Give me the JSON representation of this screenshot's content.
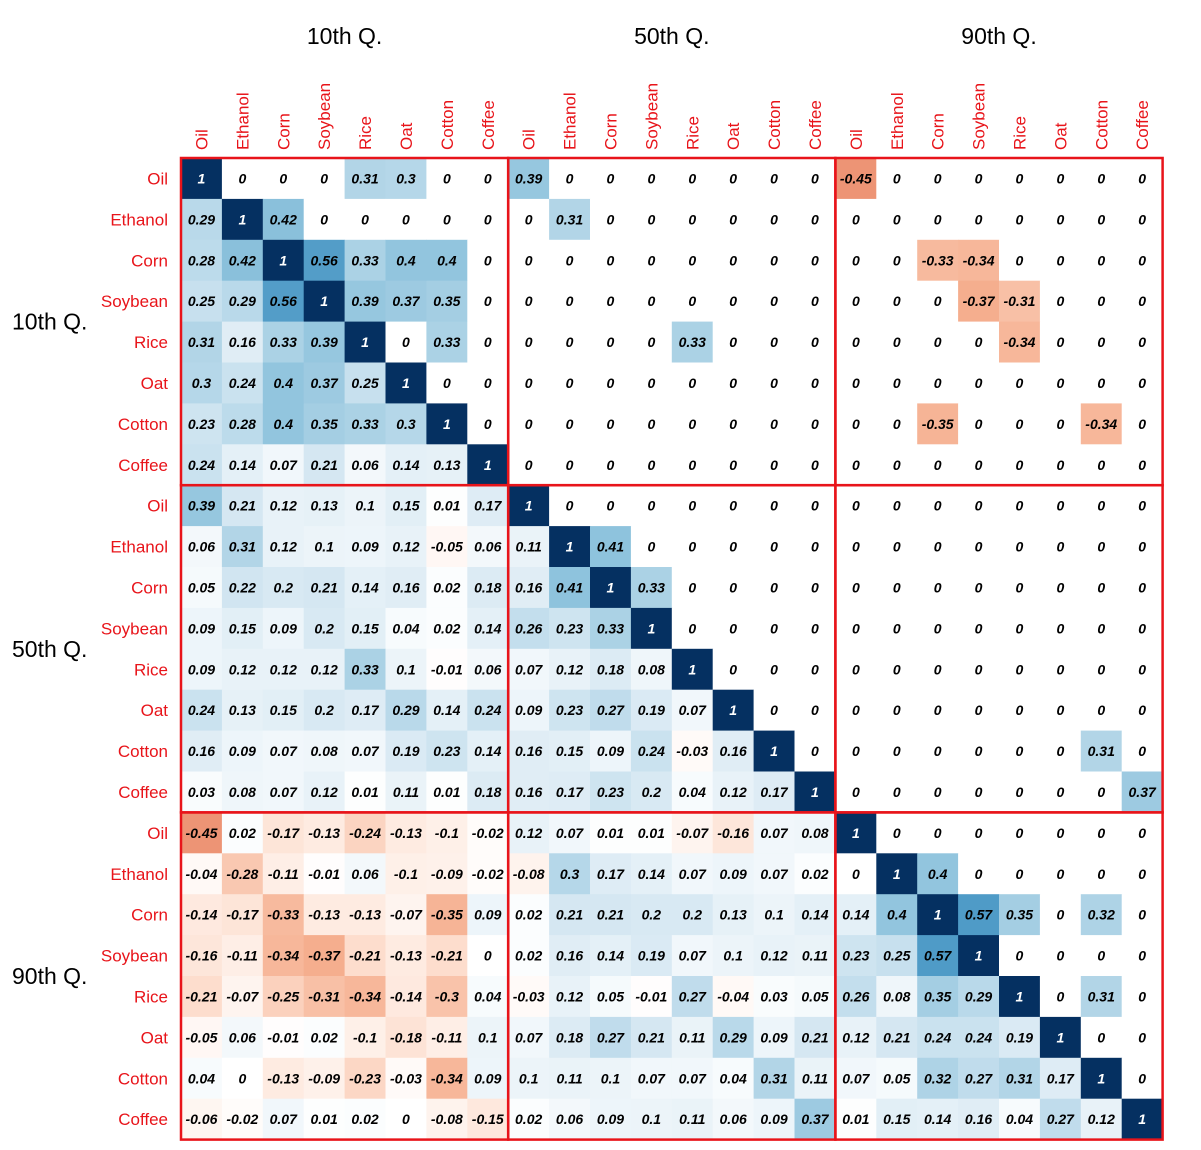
{
  "chart_data": {
    "type": "heatmap",
    "block_titles": [
      "10th Q.",
      "50th Q.",
      "90th Q."
    ],
    "variables": [
      "Oil",
      "Ethanol",
      "Corn",
      "Soybean",
      "Rice",
      "Oat",
      "Cotton",
      "Coffee"
    ],
    "color_scale": {
      "negative": "#d6604d",
      "zero": "#ffffff",
      "positive": "#053061"
    },
    "label_color": "#e8141a",
    "border_color": "#e8141a",
    "matrix": [
      [
        "1",
        "0",
        "0",
        "0",
        "0.31",
        "0.3",
        "0",
        "0",
        "0.39",
        "0",
        "0",
        "0",
        "0",
        "0",
        "0",
        "0",
        "-0.45",
        "0",
        "0",
        "0",
        "0",
        "0",
        "0",
        "0"
      ],
      [
        "0.29",
        "1",
        "0.42",
        "0",
        "0",
        "0",
        "0",
        "0",
        "0",
        "0.31",
        "0",
        "0",
        "0",
        "0",
        "0",
        "0",
        "0",
        "0",
        "0",
        "0",
        "0",
        "0",
        "0",
        "0"
      ],
      [
        "0.28",
        "0.42",
        "1",
        "0.56",
        "0.33",
        "0.4",
        "0.4",
        "0",
        "0",
        "0",
        "0",
        "0",
        "0",
        "0",
        "0",
        "0",
        "0",
        "0",
        "-0.33",
        "-0.34",
        "0",
        "0",
        "0",
        "0"
      ],
      [
        "0.25",
        "0.29",
        "0.56",
        "1",
        "0.39",
        "0.37",
        "0.35",
        "0",
        "0",
        "0",
        "0",
        "0",
        "0",
        "0",
        "0",
        "0",
        "0",
        "0",
        "0",
        "-0.37",
        "-0.31",
        "0",
        "0",
        "0"
      ],
      [
        "0.31",
        "0.16",
        "0.33",
        "0.39",
        "1",
        "0",
        "0.33",
        "0",
        "0",
        "0",
        "0",
        "0",
        "0.33",
        "0",
        "0",
        "0",
        "0",
        "0",
        "0",
        "0",
        "-0.34",
        "0",
        "0",
        "0"
      ],
      [
        "0.3",
        "0.24",
        "0.4",
        "0.37",
        "0.25",
        "1",
        "0",
        "0",
        "0",
        "0",
        "0",
        "0",
        "0",
        "0",
        "0",
        "0",
        "0",
        "0",
        "0",
        "0",
        "0",
        "0",
        "0",
        "0"
      ],
      [
        "0.23",
        "0.28",
        "0.4",
        "0.35",
        "0.33",
        "0.3",
        "1",
        "0",
        "0",
        "0",
        "0",
        "0",
        "0",
        "0",
        "0",
        "0",
        "0",
        "0",
        "-0.35",
        "0",
        "0",
        "0",
        "-0.34",
        "0"
      ],
      [
        "0.24",
        "0.14",
        "0.07",
        "0.21",
        "0.06",
        "0.14",
        "0.13",
        "1",
        "0",
        "0",
        "0",
        "0",
        "0",
        "0",
        "0",
        "0",
        "0",
        "0",
        "0",
        "0",
        "0",
        "0",
        "0",
        "0"
      ],
      [
        "0.39",
        "0.21",
        "0.12",
        "0.13",
        "0.1",
        "0.15",
        "0.01",
        "0.17",
        "1",
        "0",
        "0",
        "0",
        "0",
        "0",
        "0",
        "0",
        "0",
        "0",
        "0",
        "0",
        "0",
        "0",
        "0",
        "0"
      ],
      [
        "0.06",
        "0.31",
        "0.12",
        "0.1",
        "0.09",
        "0.12",
        "-0.05",
        "0.06",
        "0.11",
        "1",
        "0.41",
        "0",
        "0",
        "0",
        "0",
        "0",
        "0",
        "0",
        "0",
        "0",
        "0",
        "0",
        "0",
        "0"
      ],
      [
        "0.05",
        "0.22",
        "0.2",
        "0.21",
        "0.14",
        "0.16",
        "0.02",
        "0.18",
        "0.16",
        "0.41",
        "1",
        "0.33",
        "0",
        "0",
        "0",
        "0",
        "0",
        "0",
        "0",
        "0",
        "0",
        "0",
        "0",
        "0"
      ],
      [
        "0.09",
        "0.15",
        "0.09",
        "0.2",
        "0.15",
        "0.04",
        "0.02",
        "0.14",
        "0.26",
        "0.23",
        "0.33",
        "1",
        "0",
        "0",
        "0",
        "0",
        "0",
        "0",
        "0",
        "0",
        "0",
        "0",
        "0",
        "0"
      ],
      [
        "0.09",
        "0.12",
        "0.12",
        "0.12",
        "0.33",
        "0.1",
        "-0.01",
        "0.06",
        "0.07",
        "0.12",
        "0.18",
        "0.08",
        "1",
        "0",
        "0",
        "0",
        "0",
        "0",
        "0",
        "0",
        "0",
        "0",
        "0",
        "0"
      ],
      [
        "0.24",
        "0.13",
        "0.15",
        "0.2",
        "0.17",
        "0.29",
        "0.14",
        "0.24",
        "0.09",
        "0.23",
        "0.27",
        "0.19",
        "0.07",
        "1",
        "0",
        "0",
        "0",
        "0",
        "0",
        "0",
        "0",
        "0",
        "0",
        "0"
      ],
      [
        "0.16",
        "0.09",
        "0.07",
        "0.08",
        "0.07",
        "0.19",
        "0.23",
        "0.14",
        "0.16",
        "0.15",
        "0.09",
        "0.24",
        "-0.03",
        "0.16",
        "1",
        "0",
        "0",
        "0",
        "0",
        "0",
        "0",
        "0",
        "0.31",
        "0"
      ],
      [
        "0.03",
        "0.08",
        "0.07",
        "0.12",
        "0.01",
        "0.11",
        "0.01",
        "0.18",
        "0.16",
        "0.17",
        "0.23",
        "0.2",
        "0.04",
        "0.12",
        "0.17",
        "1",
        "0",
        "0",
        "0",
        "0",
        "0",
        "0",
        "0",
        "0.37"
      ],
      [
        "-0.45",
        "0.02",
        "-0.17",
        "-0.13",
        "-0.24",
        "-0.13",
        "-0.1",
        "-0.02",
        "0.12",
        "0.07",
        "0.01",
        "0.01",
        "-0.07",
        "-0.16",
        "0.07",
        "0.08",
        "1",
        "0",
        "0",
        "0",
        "0",
        "0",
        "0",
        "0"
      ],
      [
        "-0.04",
        "-0.28",
        "-0.11",
        "-0.01",
        "0.06",
        "-0.1",
        "-0.09",
        "-0.02",
        "-0.08",
        "0.3",
        "0.17",
        "0.14",
        "0.07",
        "0.09",
        "0.07",
        "0.02",
        "0",
        "1",
        "0.4",
        "0",
        "0",
        "0",
        "0",
        "0"
      ],
      [
        "-0.14",
        "-0.17",
        "-0.33",
        "-0.13",
        "-0.13",
        "-0.07",
        "-0.35",
        "0.09",
        "0.02",
        "0.21",
        "0.21",
        "0.2",
        "0.2",
        "0.13",
        "0.1",
        "0.14",
        "0.14",
        "0.4",
        "1",
        "0.57",
        "0.35",
        "0",
        "0.32",
        "0"
      ],
      [
        "-0.16",
        "-0.11",
        "-0.34",
        "-0.37",
        "-0.21",
        "-0.13",
        "-0.21",
        "0",
        "0.02",
        "0.16",
        "0.14",
        "0.19",
        "0.07",
        "0.1",
        "0.12",
        "0.11",
        "0.23",
        "0.25",
        "0.57",
        "1",
        "0",
        "0",
        "0",
        "0"
      ],
      [
        "-0.21",
        "-0.07",
        "-0.25",
        "-0.31",
        "-0.34",
        "-0.14",
        "-0.3",
        "0.04",
        "-0.03",
        "0.12",
        "0.05",
        "-0.01",
        "0.27",
        "-0.04",
        "0.03",
        "0.05",
        "0.26",
        "0.08",
        "0.35",
        "0.29",
        "1",
        "0",
        "0.31",
        "0"
      ],
      [
        "-0.05",
        "0.06",
        "-0.01",
        "0.02",
        "-0.1",
        "-0.18",
        "-0.11",
        "0.1",
        "0.07",
        "0.18",
        "0.27",
        "0.21",
        "0.11",
        "0.29",
        "0.09",
        "0.21",
        "0.12",
        "0.21",
        "0.24",
        "0.24",
        "0.19",
        "1",
        "0",
        "0"
      ],
      [
        "0.04",
        "0",
        "-0.13",
        "-0.09",
        "-0.23",
        "-0.03",
        "-0.34",
        "0.09",
        "0.1",
        "0.11",
        "0.1",
        "0.07",
        "0.07",
        "0.04",
        "0.31",
        "0.11",
        "0.07",
        "0.05",
        "0.32",
        "0.27",
        "0.31",
        "0.17",
        "1",
        "0"
      ],
      [
        "-0.06",
        "-0.02",
        "0.07",
        "0.01",
        "0.02",
        "0",
        "-0.08",
        "-0.15",
        "0.02",
        "0.06",
        "0.09",
        "0.1",
        "0.11",
        "0.06",
        "0.09",
        "0.37",
        "0.01",
        "0.15",
        "0.14",
        "0.16",
        "0.04",
        "0.27",
        "0.12",
        "1"
      ]
    ]
  }
}
